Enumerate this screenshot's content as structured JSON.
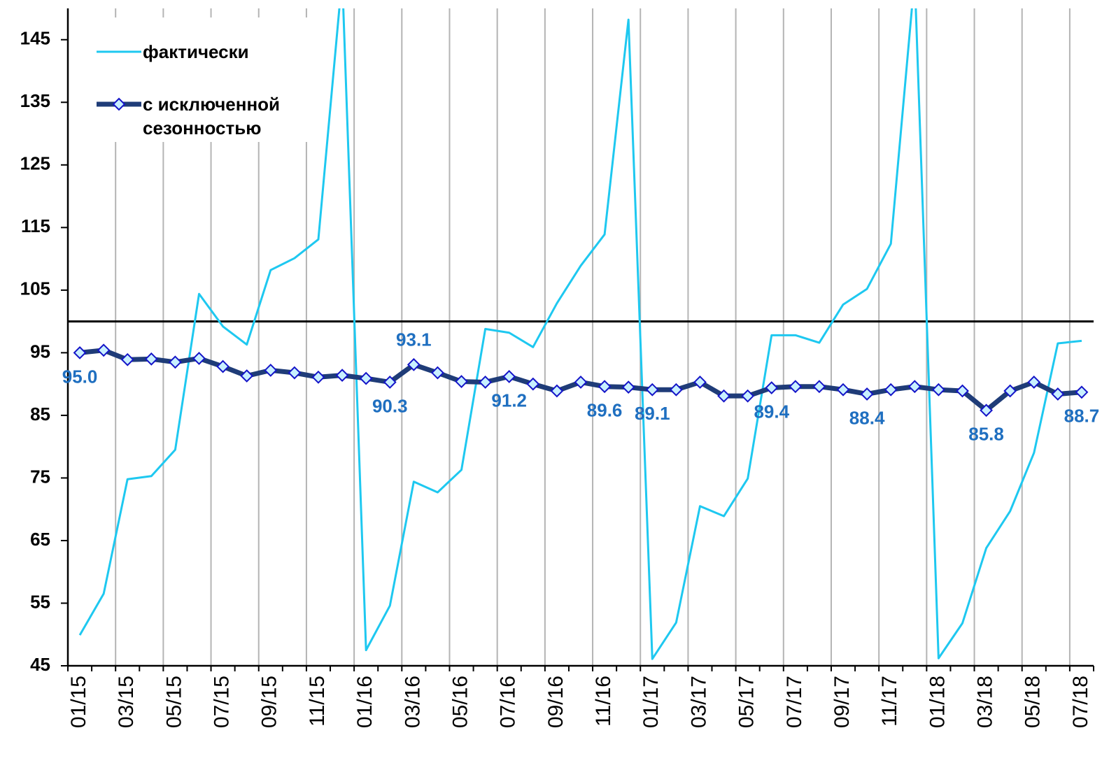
{
  "chart_data": {
    "type": "line",
    "categories": [
      "01/15",
      null,
      "03/15",
      null,
      "05/15",
      null,
      "07/15",
      null,
      "09/15",
      null,
      "11/15",
      null,
      "01/16",
      null,
      "03/16",
      null,
      "05/16",
      null,
      "07/16",
      null,
      "09/16",
      null,
      "11/16",
      null,
      "01/17",
      null,
      "03/17",
      null,
      "05/17",
      null,
      "07/17",
      null,
      "09/17",
      null,
      "11/17",
      null,
      "01/18",
      null,
      "03/18",
      null,
      "05/18",
      null,
      "07/18"
    ],
    "series": [
      {
        "name": "фактически",
        "color": "#1ec8f0",
        "values": [
          49.9,
          56.5,
          74.8,
          75.3,
          79.5,
          104.4,
          99.2,
          96.3,
          108.2,
          110.1,
          113.1,
          155,
          47.5,
          54.6,
          74.4,
          72.7,
          76.3,
          98.8,
          98.2,
          95.9,
          102.9,
          108.9,
          113.9,
          148.2,
          46.1,
          51.9,
          70.5,
          68.9,
          74.9,
          97.8,
          97.8,
          96.6,
          102.7,
          105.2,
          112.4,
          155,
          46.2,
          51.8,
          63.8,
          69.7,
          79.0,
          96.5,
          96.9
        ]
      },
      {
        "name": "с исключенной сезонностью",
        "color": "#1f3c78",
        "marker_color": "#c8f0ff",
        "marker_edge": "#1414c8",
        "values": [
          95.0,
          95.4,
          93.9,
          94.0,
          93.5,
          94.1,
          92.8,
          91.3,
          92.2,
          91.8,
          91.1,
          91.4,
          90.9,
          90.3,
          93.1,
          91.8,
          90.4,
          90.3,
          91.2,
          90.0,
          88.9,
          90.3,
          89.6,
          89.5,
          89.1,
          89.1,
          90.3,
          88.1,
          88.1,
          89.4,
          89.6,
          89.6,
          89.1,
          88.4,
          89.1,
          89.6,
          89.1,
          88.9,
          85.8,
          88.9,
          90.3,
          88.4,
          88.7
        ],
        "value_labels": [
          "95.0",
          null,
          null,
          null,
          null,
          null,
          null,
          null,
          null,
          null,
          null,
          null,
          null,
          "90.3",
          "93.1",
          null,
          null,
          null,
          "91.2",
          null,
          null,
          null,
          "89.6",
          null,
          "89.1",
          null,
          null,
          null,
          null,
          "89.4",
          null,
          null,
          null,
          "88.4",
          null,
          null,
          null,
          null,
          "85.8",
          null,
          null,
          null,
          "88.7"
        ],
        "label_color": "#1f6fc0"
      }
    ],
    "ylim": [
      45,
      150
    ],
    "yticks": [
      45,
      55,
      65,
      75,
      85,
      95,
      105,
      115,
      125,
      135,
      145
    ],
    "reference_line": 100,
    "grid": true,
    "legend": "upper left"
  }
}
